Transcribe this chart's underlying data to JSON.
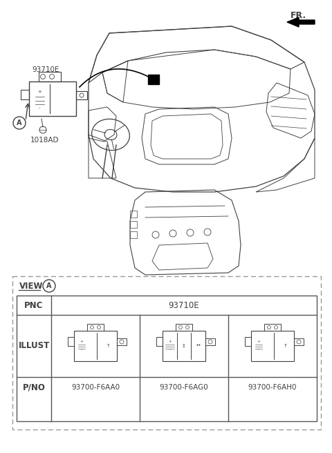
{
  "fr_label": "FR.",
  "part_label_main": "93710E",
  "fastener_label": "1018AD",
  "view_label": "VIEW",
  "view_circle_label": "A",
  "pnc_label": "PNC",
  "illust_label": "ILLUST",
  "pno_label": "P/NO",
  "pnc_value": "93710E",
  "part_numbers": [
    "93700-F6AA0",
    "93700-F6AG0",
    "93700-F6AH0"
  ],
  "bg_color": "#ffffff",
  "line_color": "#404040",
  "table_border_color": "#555555",
  "dashed_border_color": "#888888"
}
